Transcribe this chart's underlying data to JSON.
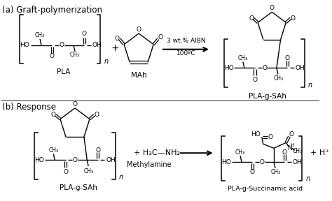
{
  "title_a": "(a) Graft-polymerization",
  "title_b": "(b) Response",
  "label_PLA": "PLA",
  "label_MAh": "MAh",
  "label_PLAgSAh_a": "PLA-g-SAh",
  "label_PLAgSAh_b": "PLA-g-SAh",
  "label_methylamine": "Methylamine",
  "label_product": "PLA-g-Succinamic acid",
  "label_conditions1": "3 wt.% AIBN",
  "label_conditions2": "100ºC",
  "label_plus": "+",
  "label_Hplus": "+ H⁺",
  "bg_color": "#ffffff",
  "line_color": "#000000",
  "font_size_title": 8.5,
  "font_size_label": 7.5,
  "font_size_atom": 6.5,
  "font_size_small": 5.5
}
